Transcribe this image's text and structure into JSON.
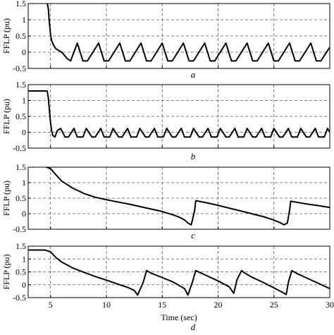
{
  "chart_data": [
    {
      "type": "line",
      "panel_label": "a",
      "ylabel": "FFLP (pu)",
      "xlabel": "",
      "xlim": [
        3,
        30
      ],
      "ylim": [
        -0.5,
        1.5
      ],
      "yticks": [
        -0.5,
        0,
        0.5,
        1,
        1.5
      ],
      "ytick_labels": [
        "-0.5",
        "0",
        "0.5",
        "1",
        "1.5"
      ],
      "xticks": [
        5,
        10,
        15,
        20,
        25,
        30
      ],
      "xtick_labels": [],
      "grid": true,
      "x": [
        3.0,
        4.6,
        4.7,
        4.8,
        4.9,
        5.0,
        5.1,
        5.3,
        5.5,
        6.0,
        6.5,
        6.8,
        7.4,
        7.9,
        8.3,
        9.3,
        9.8,
        10.2,
        11.2,
        11.7,
        12.1,
        13.1,
        13.6,
        14.0,
        15.0,
        15.5,
        15.9,
        16.9,
        17.4,
        17.8,
        18.8,
        19.3,
        19.7,
        20.7,
        21.2,
        21.6,
        22.6,
        23.1,
        23.5,
        24.5,
        25.0,
        25.4,
        26.4,
        26.9,
        27.3,
        28.3,
        28.8,
        29.2,
        30.0
      ],
      "y": [
        1.52,
        1.52,
        1.52,
        1.35,
        0.9,
        0.55,
        0.35,
        0.2,
        0.1,
        0.0,
        -0.2,
        -0.27,
        0.28,
        -0.27,
        -0.27,
        0.28,
        -0.27,
        -0.27,
        0.28,
        -0.27,
        -0.27,
        0.28,
        -0.27,
        -0.27,
        0.28,
        -0.27,
        -0.27,
        0.28,
        -0.27,
        -0.27,
        0.28,
        -0.27,
        -0.27,
        0.28,
        -0.27,
        -0.27,
        0.28,
        -0.27,
        -0.27,
        0.28,
        -0.27,
        -0.27,
        0.28,
        -0.27,
        -0.27,
        0.28,
        -0.27,
        -0.27,
        0.15
      ]
    },
    {
      "type": "line",
      "panel_label": "b",
      "ylabel": "FFLP (pu)",
      "xlabel": "",
      "xlim": [
        3,
        30
      ],
      "ylim": [
        -0.5,
        1.5
      ],
      "yticks": [
        -0.5,
        0,
        0.5,
        1,
        1.5
      ],
      "ytick_labels": [
        "-0.5",
        "0",
        "0.5",
        "1",
        "1.5"
      ],
      "xticks": [
        5,
        10,
        15,
        20,
        25,
        30
      ],
      "xtick_labels": [],
      "grid": true,
      "x": [
        3.0,
        4.6,
        4.7,
        4.8,
        4.9,
        5.0,
        5.1,
        5.2,
        5.4,
        5.6,
        5.9,
        6.3,
        6.6,
        7.1,
        7.4,
        7.9,
        8.2,
        8.7,
        9.0,
        9.5,
        9.8,
        10.3,
        10.6,
        11.1,
        11.4,
        11.9,
        12.2,
        12.7,
        13.0,
        13.5,
        13.8,
        14.3,
        14.6,
        15.1,
        15.4,
        15.9,
        16.2,
        16.7,
        17.0,
        17.5,
        17.8,
        18.3,
        18.6,
        19.1,
        19.4,
        19.9,
        20.2,
        20.7,
        21.0,
        21.5,
        21.8,
        22.3,
        22.6,
        23.1,
        23.4,
        23.9,
        24.2,
        24.7,
        25.0,
        25.5,
        25.8,
        26.3,
        26.6,
        27.1,
        27.4,
        27.9,
        28.2,
        28.7,
        29.0,
        29.5,
        29.8,
        30.0
      ],
      "y": [
        1.3,
        1.3,
        1.3,
        1.1,
        0.7,
        0.3,
        0.05,
        -0.1,
        -0.15,
        0.05,
        0.12,
        -0.15,
        -0.15,
        0.12,
        -0.15,
        -0.15,
        0.12,
        -0.15,
        -0.15,
        0.12,
        -0.15,
        -0.15,
        0.12,
        -0.15,
        -0.15,
        0.12,
        -0.15,
        -0.15,
        0.12,
        -0.15,
        -0.15,
        0.12,
        -0.15,
        -0.15,
        0.12,
        -0.15,
        -0.15,
        0.12,
        -0.15,
        -0.15,
        0.12,
        -0.15,
        -0.15,
        0.12,
        -0.15,
        -0.15,
        0.12,
        -0.15,
        -0.15,
        0.12,
        -0.15,
        -0.15,
        0.12,
        -0.15,
        -0.15,
        0.12,
        -0.15,
        -0.15,
        0.12,
        -0.15,
        -0.15,
        0.12,
        -0.15,
        -0.15,
        0.12,
        -0.15,
        -0.15,
        0.12,
        -0.15,
        -0.15,
        0.12,
        0.0
      ]
    },
    {
      "type": "line",
      "panel_label": "c",
      "ylabel": "FFLP (pu)",
      "xlabel": "",
      "xlim": [
        3,
        30
      ],
      "ylim": [
        -0.5,
        1.5
      ],
      "yticks": [
        -0.5,
        0,
        0.5,
        1,
        1.5
      ],
      "ytick_labels": [
        "-0.5",
        "0",
        "0.5",
        "1",
        "1.5"
      ],
      "xticks": [
        5,
        10,
        15,
        20,
        25,
        30
      ],
      "xtick_labels": [],
      "grid": true,
      "x": [
        3.0,
        4.5,
        5.0,
        5.5,
        6.0,
        7.0,
        8.0,
        9.0,
        10.0,
        11.0,
        12.0,
        13.0,
        14.0,
        15.0,
        16.0,
        16.5,
        17.0,
        17.3,
        17.6,
        17.9,
        18.0,
        19.0,
        20.0,
        21.0,
        22.0,
        23.0,
        24.0,
        24.8,
        25.5,
        25.9,
        26.2,
        26.4,
        26.5,
        27.0,
        28.0,
        29.0,
        30.0
      ],
      "y": [
        1.52,
        1.52,
        1.45,
        1.25,
        1.05,
        0.82,
        0.65,
        0.53,
        0.45,
        0.38,
        0.31,
        0.23,
        0.15,
        0.07,
        -0.04,
        -0.11,
        -0.2,
        -0.3,
        -0.36,
        0.1,
        0.42,
        0.35,
        0.27,
        0.18,
        0.09,
        0.0,
        -0.09,
        -0.18,
        -0.28,
        -0.36,
        -0.3,
        0.1,
        0.4,
        0.37,
        0.31,
        0.26,
        0.2
      ]
    },
    {
      "type": "line",
      "panel_label": "d",
      "ylabel": "FFLP (pu)",
      "xlabel": "Time (sec)",
      "xlim": [
        3,
        30
      ],
      "ylim": [
        -0.5,
        1.5
      ],
      "yticks": [
        -0.5,
        0,
        0.5,
        1,
        1.5
      ],
      "ytick_labels": [
        "-0.5",
        "0",
        "0.5",
        "1",
        "1.5"
      ],
      "xticks": [
        5,
        10,
        15,
        20,
        25,
        30
      ],
      "xtick_labels": [
        "5",
        "10",
        "15",
        "20",
        "25",
        "30"
      ],
      "grid": true,
      "x": [
        3.0,
        4.5,
        5.0,
        5.5,
        6.0,
        7.0,
        8.0,
        9.0,
        10.0,
        11.0,
        12.0,
        12.5,
        12.8,
        13.3,
        13.6,
        14.0,
        15.0,
        16.0,
        17.0,
        17.3,
        17.7,
        18.0,
        19.0,
        20.0,
        21.0,
        21.4,
        21.7,
        22.1,
        22.4,
        23.0,
        24.0,
        25.0,
        25.8,
        26.1,
        26.3,
        26.6,
        27.0,
        28.0,
        29.0,
        30.0
      ],
      "y": [
        1.35,
        1.35,
        1.28,
        1.05,
        0.88,
        0.65,
        0.48,
        0.32,
        0.18,
        0.03,
        -0.12,
        -0.22,
        -0.4,
        0.1,
        0.55,
        0.45,
        0.28,
        0.1,
        -0.15,
        -0.4,
        0.1,
        0.55,
        0.35,
        0.15,
        -0.08,
        -0.33,
        0.2,
        0.55,
        0.45,
        0.3,
        0.1,
        -0.12,
        -0.3,
        -0.38,
        0.1,
        0.55,
        0.45,
        0.25,
        0.05,
        -0.15
      ]
    }
  ]
}
